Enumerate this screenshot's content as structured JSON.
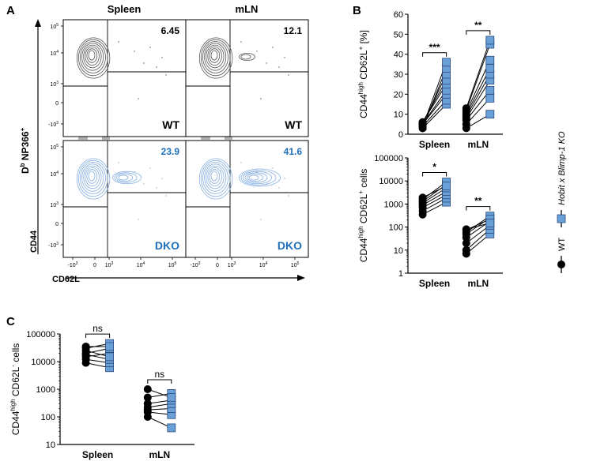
{
  "panel_letters": {
    "a": "A",
    "b": "B",
    "c": "C"
  },
  "colors": {
    "wt": "#000000",
    "dko": "#6aa0d8",
    "dko_text": "#1f6fb8",
    "contour_wt": "#555555",
    "contour_dko": "#86afe0"
  },
  "legend": {
    "wt": "WT",
    "dko": "Hobit x Blimp-1 KO"
  },
  "chart_data": [
    {
      "id": "A",
      "type": "flow_cytometry_contour",
      "columns": [
        "Spleen",
        "mLN"
      ],
      "rows": [
        "WT",
        "DKO"
      ],
      "y_axis_label": "CD44",
      "x_axis_label": "CD62L",
      "side_label_main": "D",
      "side_label_sup": "b",
      "side_label_rest": " NP366",
      "side_label_plus": "+",
      "y_ticks": [
        "10",
        "10",
        "0",
        "-10",
        "10"
      ],
      "y_tick_exps": [
        "5",
        "4",
        "",
        "3",
        "3"
      ],
      "x_tick_bases": [
        "-10",
        "0",
        "10",
        "10",
        "10"
      ],
      "x_tick_exps": [
        "3",
        "",
        "3",
        "4",
        "5"
      ],
      "gate_percentages": [
        [
          "6.45",
          "12.1"
        ],
        [
          "23.9",
          "41.6"
        ]
      ]
    },
    {
      "id": "B-top",
      "type": "paired_scatter",
      "ylabel_main": "CD44",
      "ylabel_sup": "high",
      "ylabel_rest": " CD62L",
      "ylabel_sup2": "+",
      "ylabel_unit": " [%]",
      "scale": "linear",
      "ylim": [
        0,
        60
      ],
      "yticks": [
        0,
        10,
        20,
        30,
        40,
        50,
        60
      ],
      "categories": [
        "Spleen",
        "mLN"
      ],
      "significance": [
        "***",
        "**"
      ],
      "pairs": [
        [
          [
            3,
            15
          ],
          [
            4,
            17
          ],
          [
            5,
            20
          ],
          [
            5,
            22
          ],
          [
            6,
            25
          ],
          [
            6,
            27
          ],
          [
            5,
            30
          ],
          [
            3,
            33
          ],
          [
            4,
            36
          ]
        ],
        [
          [
            3,
            10
          ],
          [
            5,
            18
          ],
          [
            7,
            22
          ],
          [
            8,
            27
          ],
          [
            9,
            30
          ],
          [
            10,
            33
          ],
          [
            11,
            37
          ],
          [
            12,
            45
          ],
          [
            13,
            47
          ]
        ]
      ]
    },
    {
      "id": "B-bottom",
      "type": "paired_scatter",
      "ylabel_main": "CD44",
      "ylabel_sup": "high",
      "ylabel_rest": " CD62L",
      "ylabel_sup2": "+",
      "ylabel_unit": " cells",
      "scale": "log",
      "ylim": [
        1,
        100000
      ],
      "yticks": [
        1,
        10,
        100,
        1000,
        10000,
        100000
      ],
      "ytick_labels": [
        "1",
        "10",
        "100",
        "1000",
        "10000",
        "100000"
      ],
      "categories": [
        "Spleen",
        "mLN"
      ],
      "significance": [
        "*",
        "**"
      ],
      "pairs": [
        [
          [
            350,
            1200
          ],
          [
            500,
            1800
          ],
          [
            700,
            2500
          ],
          [
            900,
            3500
          ],
          [
            1100,
            5000
          ],
          [
            1300,
            7000
          ],
          [
            1600,
            9000
          ],
          [
            1900,
            6000
          ]
        ],
        [
          [
            7,
            50
          ],
          [
            10,
            80
          ],
          [
            20,
            120
          ],
          [
            35,
            180
          ],
          [
            50,
            250
          ],
          [
            60,
            300
          ],
          [
            75,
            220
          ],
          [
            80,
            150
          ]
        ]
      ]
    },
    {
      "id": "C",
      "type": "paired_scatter",
      "ylabel_main": "CD44",
      "ylabel_sup": "high",
      "ylabel_rest": " CD62L",
      "ylabel_sup2": "-",
      "ylabel_unit": " cells",
      "scale": "log",
      "ylim": [
        10,
        100000
      ],
      "yticks": [
        10,
        100,
        1000,
        10000,
        100000
      ],
      "ytick_labels": [
        "10",
        "100",
        "1000",
        "10000",
        "100000"
      ],
      "categories": [
        "Spleen",
        "mLN"
      ],
      "significance": [
        "ns",
        "ns"
      ],
      "pairs": [
        [
          [
            9000,
            6000
          ],
          [
            12000,
            9000
          ],
          [
            15000,
            20000
          ],
          [
            18000,
            12000
          ],
          [
            20000,
            30000
          ],
          [
            25000,
            15000
          ],
          [
            30000,
            45000
          ],
          [
            35000,
            35000
          ]
        ],
        [
          [
            100,
            40
          ],
          [
            150,
            120
          ],
          [
            180,
            200
          ],
          [
            220,
            300
          ],
          [
            300,
            400
          ],
          [
            500,
            700
          ],
          [
            1000,
            500
          ]
        ]
      ]
    }
  ]
}
